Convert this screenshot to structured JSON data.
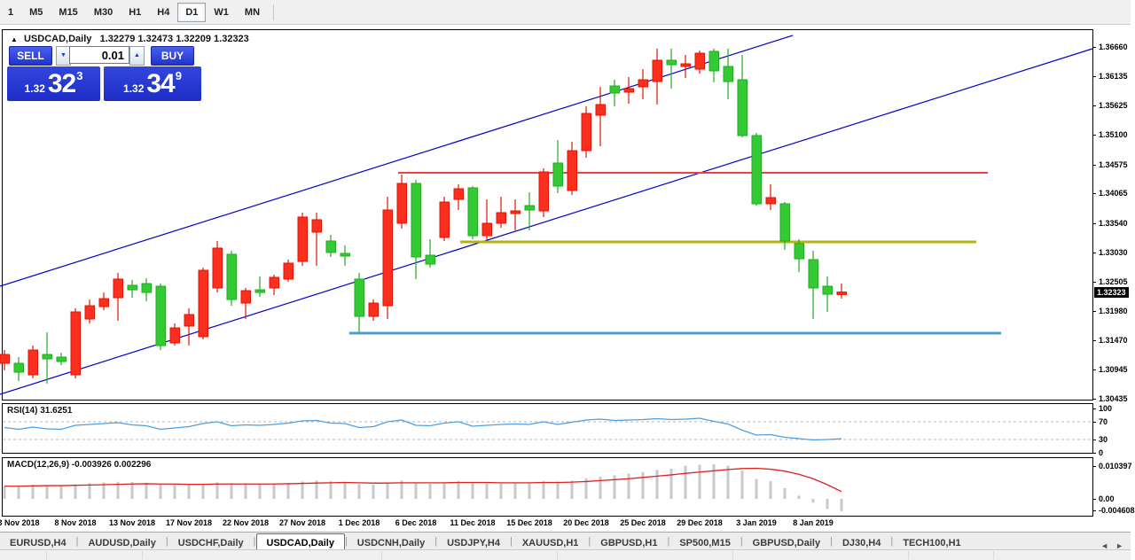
{
  "toolbar": {
    "timeframes": [
      "1",
      "M5",
      "M15",
      "M30",
      "H1",
      "H4",
      "D1",
      "W1",
      "MN"
    ],
    "active": "D1"
  },
  "chart_header": {
    "symbol": "USDCAD,Daily",
    "ohlc": "1.32279 1.32473 1.32209 1.32323"
  },
  "quote_panel": {
    "sell_label": "SELL",
    "buy_label": "BUY",
    "volume": "0.01",
    "down_icon": "▼",
    "up_icon": "▲",
    "sell_small": "1.32",
    "sell_big": "32",
    "sell_sup": "3",
    "buy_small": "1.32",
    "buy_big": "34",
    "buy_sup": "9"
  },
  "price_axis": {
    "ticks": [
      "1.36660",
      "1.36135",
      "1.35625",
      "1.35100",
      "1.34575",
      "1.34065",
      "1.33540",
      "1.33030",
      "1.32505",
      "1.31980",
      "1.31470",
      "1.30945",
      "1.30435"
    ],
    "current": "1.32323"
  },
  "rsi": {
    "label": "RSI(14) 31.6251",
    "levels": [
      "100",
      "70",
      "30",
      "0"
    ]
  },
  "macd": {
    "label": "MACD(12,26,9) -0.003926 0.002296",
    "scale": [
      "0.010397",
      "0.00",
      "-0.004608"
    ]
  },
  "dates": [
    "3 Nov 2018",
    "8 Nov 2018",
    "13 Nov 2018",
    "17 Nov 2018",
    "22 Nov 2018",
    "27 Nov 2018",
    "1 Dec 2018",
    "6 Dec 2018",
    "11 Dec 2018",
    "15 Dec 2018",
    "20 Dec 2018",
    "25 Dec 2018",
    "29 Dec 2018",
    "3 Jan 2019",
    "8 Jan 2019"
  ],
  "tabs": {
    "items": [
      "EURUSD,H4",
      "AUDUSD,Daily",
      "USDCHF,Daily",
      "USDCAD,Daily",
      "USDCNH,Daily",
      "USDJPY,H4",
      "XAUUSD,H1",
      "GBPUSD,H1",
      "SP500,M15",
      "GBPUSD,Daily",
      "DJ30,H4",
      "TECH100,H1"
    ],
    "active_index": 3,
    "scroll_left_icon": "◄",
    "scroll_right_icon": "►"
  },
  "chart_data": [
    {
      "type": "candlestick",
      "symbol": "USDCAD",
      "timeframe": "Daily",
      "ylim": [
        1.30435,
        1.3666
      ],
      "up_color": "#f9301f",
      "up_stroke": "#e31400",
      "down_color": "#35c935",
      "down_stroke": "#1fae1f",
      "ohlc": [
        [
          1.31062,
          1.31297,
          1.30937,
          1.31219
        ],
        [
          1.31062,
          1.31172,
          1.30749,
          1.30905
        ],
        [
          1.30858,
          1.31376,
          1.30796,
          1.31297
        ],
        [
          1.31219,
          1.31611,
          1.30702,
          1.31141
        ],
        [
          1.31172,
          1.3125,
          1.31031,
          1.31094
        ],
        [
          1.30858,
          1.32034,
          1.30796,
          1.31972
        ],
        [
          1.31846,
          1.32191,
          1.31768,
          1.32081
        ],
        [
          1.32065,
          1.32316,
          1.32003,
          1.32206
        ],
        [
          1.32222,
          1.32661,
          1.31815,
          1.32552
        ],
        [
          1.32442,
          1.32536,
          1.32222,
          1.32363
        ],
        [
          1.32473,
          1.32567,
          1.32159,
          1.32316
        ],
        [
          1.32426,
          1.32473,
          1.31297,
          1.31376
        ],
        [
          1.31423,
          1.31768,
          1.31376,
          1.31689
        ],
        [
          1.31721,
          1.32034,
          1.31376,
          1.31925
        ],
        [
          1.31533,
          1.32755,
          1.31486,
          1.32708
        ],
        [
          1.32395,
          1.33226,
          1.32316,
          1.33101
        ],
        [
          1.32991,
          1.33054,
          1.32081,
          1.32191
        ],
        [
          1.32128,
          1.32395,
          1.31846,
          1.32348
        ],
        [
          1.32363,
          1.32598,
          1.32238,
          1.32316
        ],
        [
          1.32395,
          1.3263,
          1.32269,
          1.32583
        ],
        [
          1.32552,
          1.32897,
          1.32505,
          1.32834
        ],
        [
          1.32865,
          1.33728,
          1.32787,
          1.3365
        ],
        [
          1.33383,
          1.33728,
          1.32787,
          1.33603
        ],
        [
          1.33226,
          1.33336,
          1.32944,
          1.33023
        ],
        [
          1.33007,
          1.33148,
          1.32787,
          1.3296
        ],
        [
          1.32552,
          1.32661,
          1.31611,
          1.31893
        ],
        [
          1.31893,
          1.32191,
          1.31815,
          1.32128
        ],
        [
          1.32081,
          1.3401,
          1.31846,
          1.33775
        ],
        [
          1.3354,
          1.34402,
          1.33446,
          1.34245
        ],
        [
          1.34245,
          1.34308,
          1.32552,
          1.32944
        ],
        [
          1.32975,
          1.33258,
          1.32755,
          1.32818
        ],
        [
          1.33289,
          1.3401,
          1.33226,
          1.33916
        ],
        [
          1.33963,
          1.34229,
          1.33775,
          1.34151
        ],
        [
          1.34167,
          1.34198,
          1.33258,
          1.3332
        ],
        [
          1.3332,
          1.33963,
          1.33226,
          1.3354
        ],
        [
          1.3354,
          1.3401,
          1.33461,
          1.33728
        ],
        [
          1.33712,
          1.33963,
          1.33414,
          1.33759
        ],
        [
          1.33853,
          1.34088,
          1.33414,
          1.33775
        ],
        [
          1.33759,
          1.34512,
          1.3365,
          1.34449
        ],
        [
          1.34606,
          1.35013,
          1.34073,
          1.34198
        ],
        [
          1.3412,
          1.34982,
          1.34041,
          1.34825
        ],
        [
          1.34825,
          1.35609,
          1.347,
          1.35484
        ],
        [
          1.35452,
          1.35954,
          1.34903,
          1.35641
        ],
        [
          1.3597,
          1.3608,
          1.35609,
          1.35845
        ],
        [
          1.3586,
          1.36127,
          1.35656,
          1.35923
        ],
        [
          1.35954,
          1.36268,
          1.35735,
          1.3608
        ],
        [
          1.36048,
          1.36629,
          1.35641,
          1.36425
        ],
        [
          1.36425,
          1.36629,
          1.35923,
          1.36346
        ],
        [
          1.36315,
          1.36519,
          1.36111,
          1.36362
        ],
        [
          1.36268,
          1.36597,
          1.3619,
          1.3655
        ],
        [
          1.36582,
          1.36629,
          1.36033,
          1.36237
        ],
        [
          1.36315,
          1.36629,
          1.35735,
          1.36048
        ],
        [
          1.3608,
          1.36519,
          1.3506,
          1.35092
        ],
        [
          1.35092,
          1.35139,
          1.33853,
          1.33885
        ],
        [
          1.33885,
          1.34229,
          1.33775,
          1.33994
        ],
        [
          1.33885,
          1.33916,
          1.3307,
          1.33226
        ],
        [
          1.33179,
          1.33258,
          1.32677,
          1.32912
        ],
        [
          1.32897,
          1.33054,
          1.31846,
          1.32395
        ],
        [
          1.32426,
          1.32598,
          1.31972,
          1.32285
        ],
        [
          1.32279,
          1.32473,
          1.32209,
          1.32323
        ]
      ],
      "overlays": {
        "trendlines": [
          {
            "x1": 0,
            "y1": 323,
            "x2": 894,
            "y2": 40,
            "color": "#0202c8"
          },
          {
            "x1": 0,
            "y1": 445,
            "x2": 1232,
            "y2": 55,
            "color": "#0202c8"
          }
        ],
        "hlines": [
          {
            "price": 1.34433,
            "x1": 449,
            "x2": 1114,
            "color": "#f04040",
            "width": 2
          },
          {
            "price": 1.3321,
            "x1": 519,
            "x2": 1101,
            "color": "#b3b412",
            "width": 3
          },
          {
            "price": 1.31595,
            "x1": 394,
            "x2": 1129,
            "color": "#4d9ad0",
            "width": 3
          }
        ]
      }
    },
    {
      "type": "line",
      "name": "RSI(14)",
      "current": 31.6251,
      "ylim": [
        0,
        100
      ],
      "level_lines": [
        70,
        30
      ],
      "color": "#4f9fe0",
      "values": [
        57,
        53,
        58,
        54,
        53,
        62,
        64,
        66,
        68,
        63,
        61,
        53,
        56,
        59,
        66,
        70,
        61,
        63,
        62,
        64,
        67,
        72,
        73,
        67,
        66,
        57,
        59,
        70,
        74,
        62,
        61,
        67,
        70,
        60,
        62,
        64,
        65,
        64,
        70,
        64,
        69,
        74,
        76,
        73,
        74,
        75,
        77,
        75,
        76,
        78,
        71,
        65,
        51,
        40,
        41,
        35,
        32,
        29,
        30,
        31.6
      ]
    },
    {
      "type": "bar+line",
      "name": "MACD(12,26,9)",
      "current_macd": -0.003926,
      "current_signal": 0.002296,
      "bar_color": "#c9c9c9",
      "signal_color": "#dd2222",
      "histogram": [
        0.004,
        0.0042,
        0.0045,
        0.0044,
        0.0043,
        0.0046,
        0.005,
        0.0052,
        0.0054,
        0.0053,
        0.0051,
        0.0045,
        0.0044,
        0.0045,
        0.0048,
        0.0052,
        0.005,
        0.0048,
        0.0047,
        0.0048,
        0.005,
        0.0055,
        0.0058,
        0.0056,
        0.0054,
        0.0047,
        0.0045,
        0.0052,
        0.0058,
        0.0052,
        0.0048,
        0.0052,
        0.0056,
        0.005,
        0.0049,
        0.005,
        0.0051,
        0.0051,
        0.0056,
        0.0055,
        0.0058,
        0.0065,
        0.007,
        0.0075,
        0.008,
        0.0085,
        0.0092,
        0.0096,
        0.0105,
        0.0108,
        0.011,
        0.0105,
        0.009,
        0.0063,
        0.0056,
        0.0034,
        0.001,
        -0.0012,
        -0.0032,
        -0.0039
      ],
      "signal": [
        0.004,
        0.004,
        0.0041,
        0.0042,
        0.0042,
        0.0043,
        0.0044,
        0.0045,
        0.0046,
        0.0047,
        0.0048,
        0.0047,
        0.0047,
        0.0046,
        0.0046,
        0.0047,
        0.0047,
        0.0047,
        0.0047,
        0.0047,
        0.0048,
        0.0049,
        0.005,
        0.0051,
        0.0052,
        0.0051,
        0.005,
        0.005,
        0.0051,
        0.0051,
        0.0051,
        0.0051,
        0.0052,
        0.0052,
        0.0052,
        0.0051,
        0.0051,
        0.0051,
        0.0052,
        0.0052,
        0.0053,
        0.0055,
        0.0058,
        0.0061,
        0.0064,
        0.0068,
        0.0072,
        0.0076,
        0.0081,
        0.0085,
        0.0089,
        0.0093,
        0.0096,
        0.0097,
        0.0094,
        0.0088,
        0.0078,
        0.0064,
        0.0045,
        0.0023
      ]
    }
  ]
}
